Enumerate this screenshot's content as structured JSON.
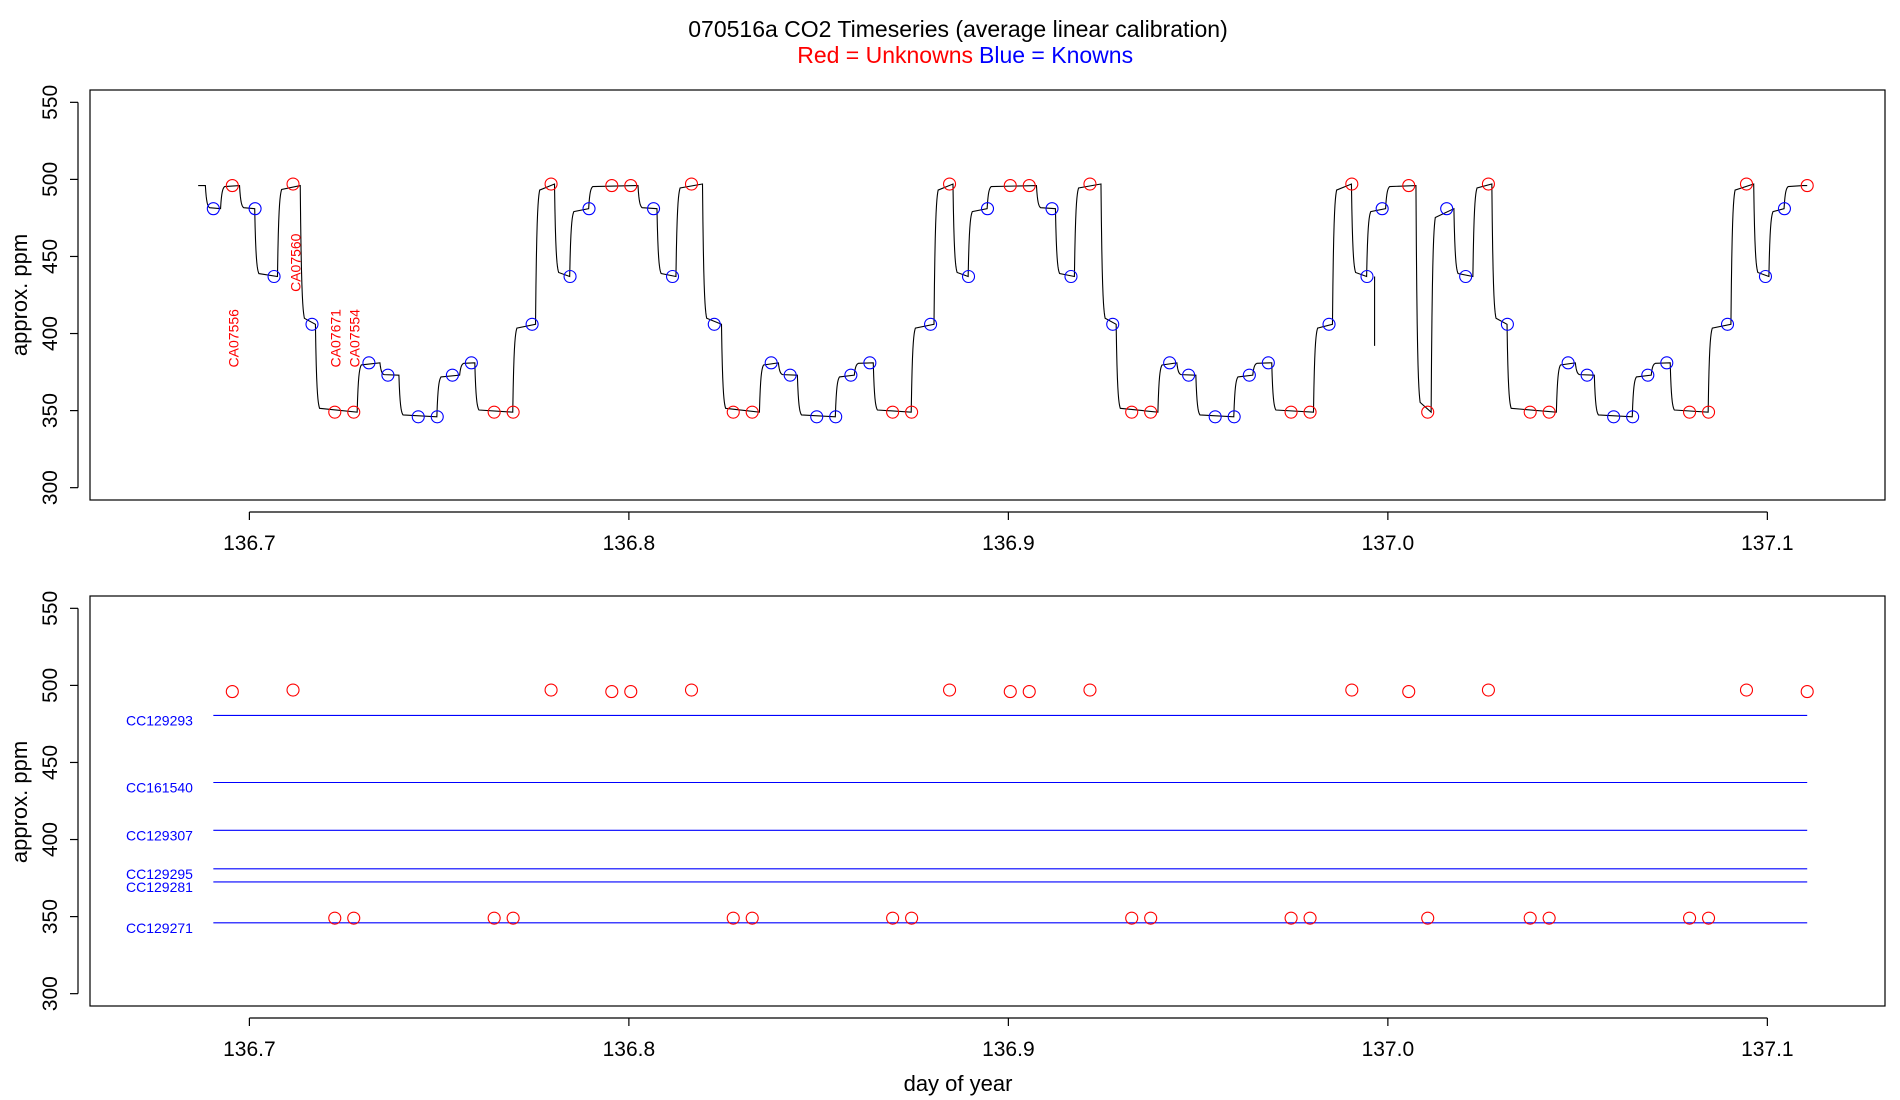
{
  "title": "070516a   CO2 Timeseries (average linear calibration)",
  "subtitle": {
    "red_text": "Red = Unknowns",
    "blue_text": "Blue = Knowns"
  },
  "colors": {
    "unknown": "#ff0000",
    "known": "#0000ff",
    "trace": "#000000"
  },
  "chart_data": [
    {
      "type": "line",
      "panel": "top",
      "xlabel": "",
      "ylabel": "approx. ppm",
      "xlim": [
        136.658,
        137.131
      ],
      "ylim": [
        292,
        558
      ],
      "xticks": [
        "136.7",
        "136.8",
        "136.9",
        "137.0",
        "137.1"
      ],
      "yticks": [
        "300",
        "350",
        "400",
        "450",
        "500",
        "550"
      ],
      "trace_steps": [
        [
          136.6865,
          496
        ],
        [
          136.6895,
          481
        ],
        [
          136.6935,
          496
        ],
        [
          136.6985,
          481
        ],
        [
          136.7025,
          437
        ],
        [
          136.7085,
          496
        ],
        [
          136.7145,
          406
        ],
        [
          136.7185,
          349
        ],
        [
          136.7295,
          381
        ],
        [
          136.7355,
          373
        ],
        [
          136.7405,
          346
        ],
        [
          136.7505,
          373
        ],
        [
          136.7565,
          381
        ],
        [
          136.7605,
          349
        ],
        [
          136.7705,
          406
        ],
        [
          136.7765,
          497
        ],
        [
          136.7815,
          437
        ],
        [
          136.7855,
          481
        ],
        [
          136.7905,
          496
        ],
        [
          136.8035,
          481
        ],
        [
          136.8085,
          437
        ],
        [
          136.8135,
          497
        ],
        [
          136.8205,
          406
        ],
        [
          136.8255,
          349
        ],
        [
          136.8355,
          381
        ],
        [
          136.8405,
          373
        ],
        [
          136.8455,
          346
        ],
        [
          136.8555,
          373
        ],
        [
          136.8605,
          381
        ],
        [
          136.8655,
          349
        ],
        [
          136.8755,
          406
        ],
        [
          136.8815,
          497
        ],
        [
          136.8865,
          437
        ],
        [
          136.8905,
          481
        ],
        [
          136.8955,
          496
        ],
        [
          136.9085,
          481
        ],
        [
          136.9135,
          437
        ],
        [
          136.9185,
          497
        ],
        [
          136.9255,
          406
        ],
        [
          136.9295,
          349
        ],
        [
          136.9405,
          381
        ],
        [
          136.9455,
          373
        ],
        [
          136.9505,
          346
        ],
        [
          136.9605,
          373
        ],
        [
          136.9655,
          381
        ],
        [
          136.9705,
          349
        ],
        [
          136.9815,
          406
        ],
        [
          136.9865,
          497
        ],
        [
          136.9915,
          437
        ],
        [
          136.9955,
          481
        ],
        [
          137.0005,
          496
        ],
        [
          137.0085,
          349
        ],
        [
          137.0125,
          481
        ],
        [
          137.0185,
          437
        ],
        [
          137.0235,
          497
        ],
        [
          137.0285,
          406
        ],
        [
          137.0325,
          349
        ],
        [
          137.0455,
          381
        ],
        [
          137.0505,
          373
        ],
        [
          137.0555,
          346
        ],
        [
          137.0655,
          373
        ],
        [
          137.0705,
          381
        ],
        [
          137.0755,
          349
        ],
        [
          137.0855,
          406
        ],
        [
          137.0915,
          497
        ],
        [
          137.0975,
          437
        ],
        [
          137.1015,
          481
        ],
        [
          137.1055,
          496
        ],
        [
          137.1105,
          496
        ]
      ],
      "trace_spike": {
        "x": 136.9965,
        "low": 392,
        "high": 437
      },
      "series": [
        {
          "name": "Unknowns",
          "color": "#ff0000",
          "points": [
            [
              136.6955,
              496
            ],
            [
              136.7115,
              497
            ],
            [
              136.7225,
              349
            ],
            [
              136.7275,
              349
            ],
            [
              136.7645,
              349
            ],
            [
              136.7695,
              349
            ],
            [
              136.7795,
              497
            ],
            [
              136.7955,
              496
            ],
            [
              136.8005,
              496
            ],
            [
              136.8165,
              497
            ],
            [
              136.8275,
              349
            ],
            [
              136.8325,
              349
            ],
            [
              136.8695,
              349
            ],
            [
              136.8745,
              349
            ],
            [
              136.8845,
              497
            ],
            [
              136.9005,
              496
            ],
            [
              136.9055,
              496
            ],
            [
              136.9215,
              497
            ],
            [
              136.9325,
              349
            ],
            [
              136.9375,
              349
            ],
            [
              136.9745,
              349
            ],
            [
              136.9795,
              349
            ],
            [
              136.9905,
              497
            ],
            [
              137.0055,
              496
            ],
            [
              137.0105,
              349
            ],
            [
              137.0265,
              497
            ],
            [
              137.0375,
              349
            ],
            [
              137.0425,
              349
            ],
            [
              137.0795,
              349
            ],
            [
              137.0845,
              349
            ],
            [
              137.0945,
              497
            ],
            [
              137.1105,
              496
            ]
          ]
        },
        {
          "name": "Knowns",
          "color": "#0000ff",
          "points": [
            [
              136.6905,
              481
            ],
            [
              136.7015,
              481
            ],
            [
              136.7065,
              437
            ],
            [
              136.7165,
              406
            ],
            [
              136.7315,
              381
            ],
            [
              136.7365,
              373
            ],
            [
              136.7445,
              346
            ],
            [
              136.7495,
              346
            ],
            [
              136.7535,
              373
            ],
            [
              136.7585,
              381
            ],
            [
              136.7745,
              406
            ],
            [
              136.7845,
              437
            ],
            [
              136.7895,
              481
            ],
            [
              136.8065,
              481
            ],
            [
              136.8115,
              437
            ],
            [
              136.8225,
              406
            ],
            [
              136.8375,
              381
            ],
            [
              136.8425,
              373
            ],
            [
              136.8495,
              346
            ],
            [
              136.8545,
              346
            ],
            [
              136.8585,
              373
            ],
            [
              136.8635,
              381
            ],
            [
              136.8795,
              406
            ],
            [
              136.8895,
              437
            ],
            [
              136.8945,
              481
            ],
            [
              136.9115,
              481
            ],
            [
              136.9165,
              437
            ],
            [
              136.9275,
              406
            ],
            [
              136.9425,
              381
            ],
            [
              136.9475,
              373
            ],
            [
              136.9545,
              346
            ],
            [
              136.9595,
              346
            ],
            [
              136.9635,
              373
            ],
            [
              136.9685,
              381
            ],
            [
              136.9845,
              406
            ],
            [
              136.9945,
              437
            ],
            [
              136.9985,
              481
            ],
            [
              137.0155,
              481
            ],
            [
              137.0205,
              437
            ],
            [
              137.0315,
              406
            ],
            [
              137.0475,
              381
            ],
            [
              137.0525,
              373
            ],
            [
              137.0595,
              346
            ],
            [
              137.0645,
              346
            ],
            [
              137.0685,
              373
            ],
            [
              137.0735,
              381
            ],
            [
              137.0895,
              406
            ],
            [
              137.0995,
              437
            ],
            [
              137.1045,
              481
            ]
          ]
        }
      ],
      "annotations": [
        {
          "text": "CA07556",
          "x": 136.6958,
          "y": 378
        },
        {
          "text": "CA07560",
          "x": 136.7121,
          "y": 427
        },
        {
          "text": "CA07671",
          "x": 136.7227,
          "y": 378
        },
        {
          "text": "CA07554",
          "x": 136.7277,
          "y": 378
        }
      ]
    },
    {
      "type": "scatter",
      "panel": "bottom",
      "xlabel": "day of year",
      "ylabel": "approx. ppm",
      "xlim": [
        136.658,
        137.131
      ],
      "ylim": [
        292,
        558
      ],
      "xticks": [
        "136.7",
        "136.8",
        "136.9",
        "137.0",
        "137.1"
      ],
      "yticks": [
        "300",
        "350",
        "400",
        "450",
        "500",
        "550"
      ],
      "series": [
        {
          "name": "Unknowns",
          "color": "#ff0000",
          "points": [
            [
              136.6955,
              496
            ],
            [
              136.7115,
              497
            ],
            [
              136.7225,
              349
            ],
            [
              136.7275,
              349
            ],
            [
              136.7645,
              349
            ],
            [
              136.7695,
              349
            ],
            [
              136.7795,
              497
            ],
            [
              136.7955,
              496
            ],
            [
              136.8005,
              496
            ],
            [
              136.8165,
              497
            ],
            [
              136.8275,
              349
            ],
            [
              136.8325,
              349
            ],
            [
              136.8695,
              349
            ],
            [
              136.8745,
              349
            ],
            [
              136.8845,
              497
            ],
            [
              136.9005,
              496
            ],
            [
              136.9055,
              496
            ],
            [
              136.9215,
              497
            ],
            [
              136.9325,
              349
            ],
            [
              136.9375,
              349
            ],
            [
              136.9745,
              349
            ],
            [
              136.9795,
              349
            ],
            [
              136.9905,
              497
            ],
            [
              137.0055,
              496
            ],
            [
              137.0105,
              349
            ],
            [
              137.0265,
              497
            ],
            [
              137.0375,
              349
            ],
            [
              137.0425,
              349
            ],
            [
              137.0795,
              349
            ],
            [
              137.0845,
              349
            ],
            [
              137.0945,
              497
            ],
            [
              137.1105,
              496
            ]
          ]
        }
      ],
      "standards": [
        {
          "name": "CC129293",
          "value": 480.5
        },
        {
          "name": "CC161540",
          "value": 437
        },
        {
          "name": "CC129307",
          "value": 406
        },
        {
          "name": "CC129295",
          "value": 381
        },
        {
          "name": "CC129281",
          "value": 372.5
        },
        {
          "name": "CC129271",
          "value": 346
        }
      ],
      "standards_x": [
        136.6905,
        137.1105
      ]
    }
  ]
}
